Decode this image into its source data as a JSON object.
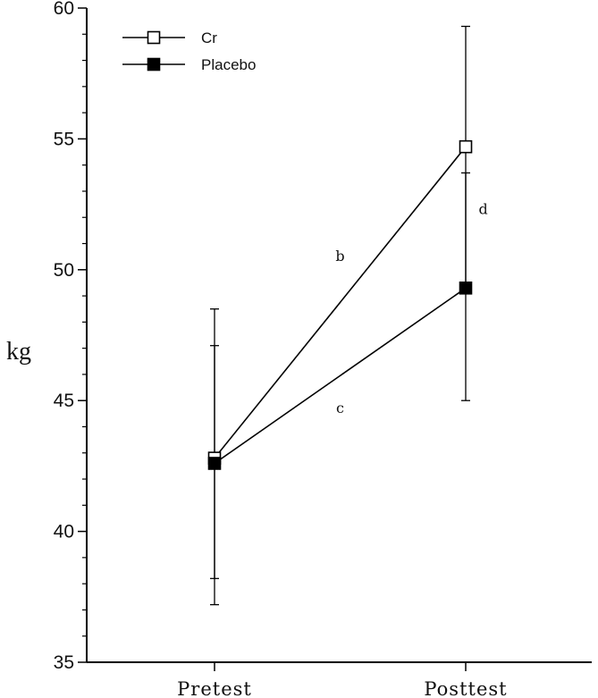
{
  "chart_data": {
    "type": "line",
    "title": "",
    "xlabel": "",
    "ylabel": "kg",
    "categories": [
      "Pretest",
      "Posttest"
    ],
    "ylim": [
      35,
      60
    ],
    "yticks": [
      35,
      40,
      45,
      50,
      55,
      60
    ],
    "minor_tick_step": 1,
    "grid": false,
    "legend_placement": "top-left",
    "series": [
      {
        "name": "Cr",
        "marker": "open-square",
        "color": "#000000",
        "values": [
          42.8,
          54.7
        ],
        "error": [
          [
            38.2,
            47.1
          ],
          [
            49.4,
            59.3
          ]
        ]
      },
      {
        "name": "Placebo",
        "marker": "filled-square",
        "color": "#000000",
        "values": [
          42.6,
          49.3
        ],
        "error": [
          [
            37.2,
            48.5
          ],
          [
            45.0,
            53.7
          ]
        ]
      }
    ],
    "annotations": [
      {
        "text": "b",
        "x": 0.5,
        "y": 50.5
      },
      {
        "text": "c",
        "x": 0.5,
        "y": 44.7
      },
      {
        "text": "d",
        "x": 1.07,
        "y": 52.3
      }
    ]
  }
}
